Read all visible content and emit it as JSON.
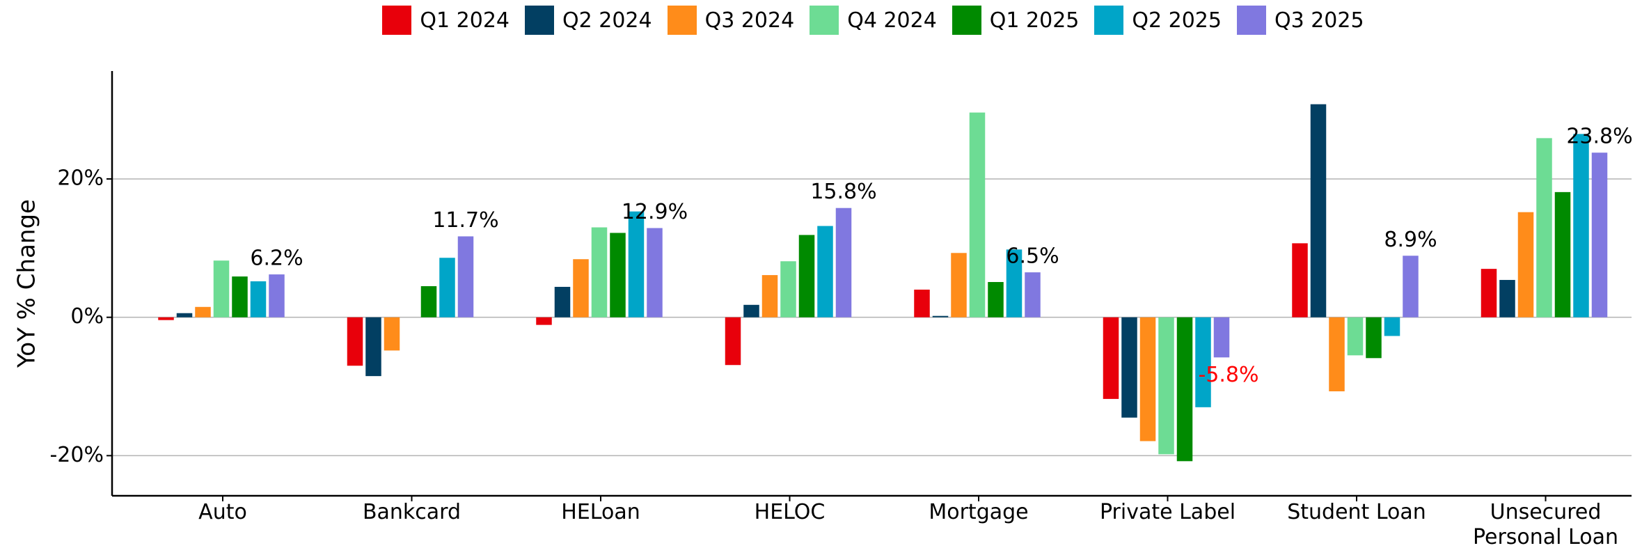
{
  "chart_data": {
    "type": "bar",
    "ylabel": "YoY % Change",
    "categories": [
      "Auto",
      "Bankcard",
      "HELoan",
      "HELOC",
      "Mortgage",
      "Private Label",
      "Student Loan",
      "Unsecured Personal Loan"
    ],
    "series": [
      {
        "name": "Q1 2024",
        "color": "#e8000b",
        "values": [
          -0.4,
          -7.0,
          -1.1,
          -6.9,
          4.0,
          -11.8,
          10.7,
          7.0
        ]
      },
      {
        "name": "Q2 2024",
        "color": "#023f62",
        "values": [
          0.6,
          -8.5,
          4.4,
          1.8,
          0.2,
          -14.5,
          30.8,
          5.4
        ]
      },
      {
        "name": "Q3 2024",
        "color": "#ff8c1a",
        "values": [
          1.5,
          -4.8,
          8.4,
          6.1,
          9.3,
          -17.9,
          -10.7,
          15.2
        ]
      },
      {
        "name": "Q4 2024",
        "color": "#6ddc94",
        "values": [
          8.2,
          null,
          13.0,
          8.1,
          29.6,
          -19.8,
          -5.5,
          25.9
        ]
      },
      {
        "name": "Q1 2025",
        "color": "#008a00",
        "values": [
          5.9,
          4.5,
          12.2,
          11.9,
          5.1,
          -20.8,
          -5.9,
          18.1
        ]
      },
      {
        "name": "Q2 2025",
        "color": "#00a5c8",
        "values": [
          5.2,
          8.6,
          15.3,
          13.2,
          9.8,
          -13.0,
          -2.7,
          26.5
        ]
      },
      {
        "name": "Q3 2025",
        "color": "#8078e0",
        "values": [
          6.2,
          11.7,
          12.9,
          15.8,
          6.5,
          -5.8,
          8.9,
          23.8
        ],
        "value_labels": [
          "6.2%",
          "11.7%",
          "12.9%",
          "15.8%",
          "6.5%",
          "-5.8%",
          "8.9%",
          "23.8%"
        ]
      }
    ],
    "negative_label_color": "#ff0000",
    "ylim": [
      -25.8,
      35.6
    ],
    "yticks": [
      {
        "value": -20,
        "label": "-20%"
      },
      {
        "value": 0,
        "label": "0%"
      },
      {
        "value": 20,
        "label": "20%"
      }
    ],
    "grid": true,
    "legend": "top"
  }
}
